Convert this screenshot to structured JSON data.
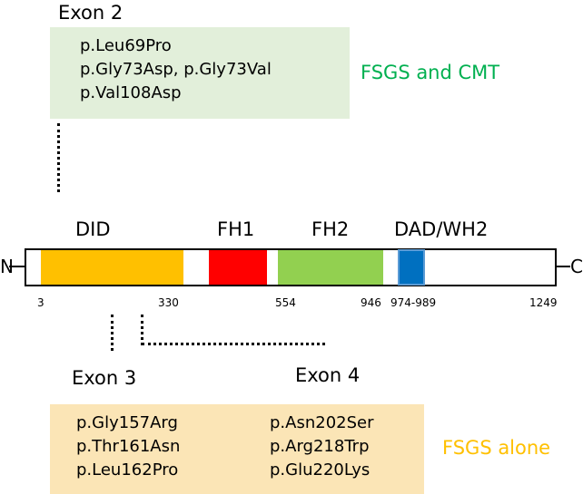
{
  "top": {
    "exon_label": "Exon 2",
    "mutations": [
      "p.Leu69Pro",
      "p.Gly73Asp, p.Gly73Val",
      "p.Val108Asp"
    ],
    "disease_label": "FSGS and CMT",
    "disease_color": "#00b050"
  },
  "protein": {
    "n_label": "N",
    "c_label": "C",
    "domains": [
      {
        "name": "DID",
        "start": "3",
        "end": "330",
        "color": "#ffc000"
      },
      {
        "name": "FH1",
        "color": "#ff0000"
      },
      {
        "name": "FH2",
        "start": "554",
        "end": "946",
        "color": "#92d050"
      },
      {
        "name": "DAD/WH2",
        "range": "974-989",
        "color": "#0070c0"
      }
    ],
    "length_label": "1249"
  },
  "bottom": {
    "exon3_label": "Exon 3",
    "exon4_label": "Exon 4",
    "exon3_mutations": [
      "p.Gly157Arg",
      "p.Thr161Asn",
      "p.Leu162Pro"
    ],
    "exon4_mutations": [
      "p.Asn202Ser",
      "p.Arg218Trp",
      "p.Glu220Lys"
    ],
    "disease_label": "FSGS alone",
    "disease_color": "#ffc000"
  }
}
